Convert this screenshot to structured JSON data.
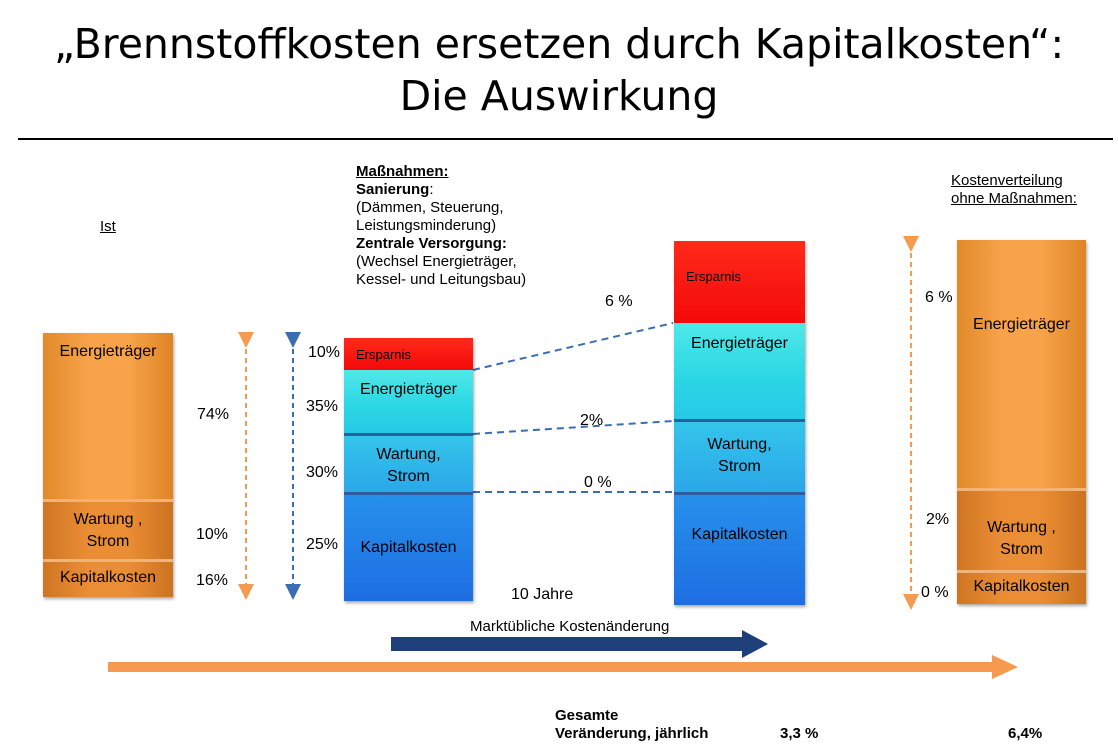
{
  "title": {
    "line1": "„Brennstoffkosten ersetzen durch Kapitalkosten“:",
    "line2": "Die Auswirkung"
  },
  "ist": {
    "heading": "Ist",
    "seg_energy": "Energieträger",
    "seg_wartung": "Wartung ,\nStrom",
    "seg_kapital": "Kapitalkosten",
    "pct_energy": "74%",
    "pct_wartung": "10%",
    "pct_kapital": "16%"
  },
  "massnahmen": {
    "heading": "Maßnahmen:",
    "sanierung_label": "Sanierung",
    "sanierung_colon": ":",
    "sanierung_detail": "(Dämmen, Steuerung,\nLeistungsminderung)",
    "versorgung_label": "Zentrale Versorgung:",
    "versorgung_detail": "(Wechsel Energieträger,\nKessel- und Leitungsbau)"
  },
  "after": {
    "seg_ersparnis": "Ersparnis",
    "seg_energy": "Energieträger",
    "seg_wartung": "Wartung,\nStrom",
    "seg_kapital": "Kapitalkosten",
    "pct_ersparnis": "10%",
    "pct_energy": "35%",
    "pct_wartung": "30%",
    "pct_kapital": "25%"
  },
  "future": {
    "seg_ersparnis": "Ersparnis",
    "seg_energy": "Energieträger",
    "seg_wartung": "Wartung,\nStrom",
    "seg_kapital": "Kapitalkosten",
    "rate_energy": "6 %",
    "rate_wartung": "2%",
    "rate_kapital": "0 %"
  },
  "ohne": {
    "heading": "Kostenverteilung\nohne Maßnahmen:",
    "seg_energy": "Energieträger",
    "seg_wartung": "Wartung ,\nStrom",
    "seg_kapital": "Kapitalkosten",
    "rate_energy": "6 %",
    "rate_wartung": "2%",
    "rate_kapital": "0 %"
  },
  "timeline": {
    "years": "10 Jahre",
    "arrow_label": "Marktübliche Kostenänderung"
  },
  "summary": {
    "label": "Gesamte\nVeränderung, jährlich",
    "value_with": "3,3 %",
    "value_without": "6,4%"
  },
  "colors": {
    "orange": "#f8a34a",
    "red": "#f40a0a",
    "cyan": "#2ad6e4",
    "blue": "#1e6ee2",
    "dark_blue_arrow": "#1f3f7a",
    "orange_arrow": "#f59a4e",
    "dashed_connector": "#3b6db3"
  }
}
